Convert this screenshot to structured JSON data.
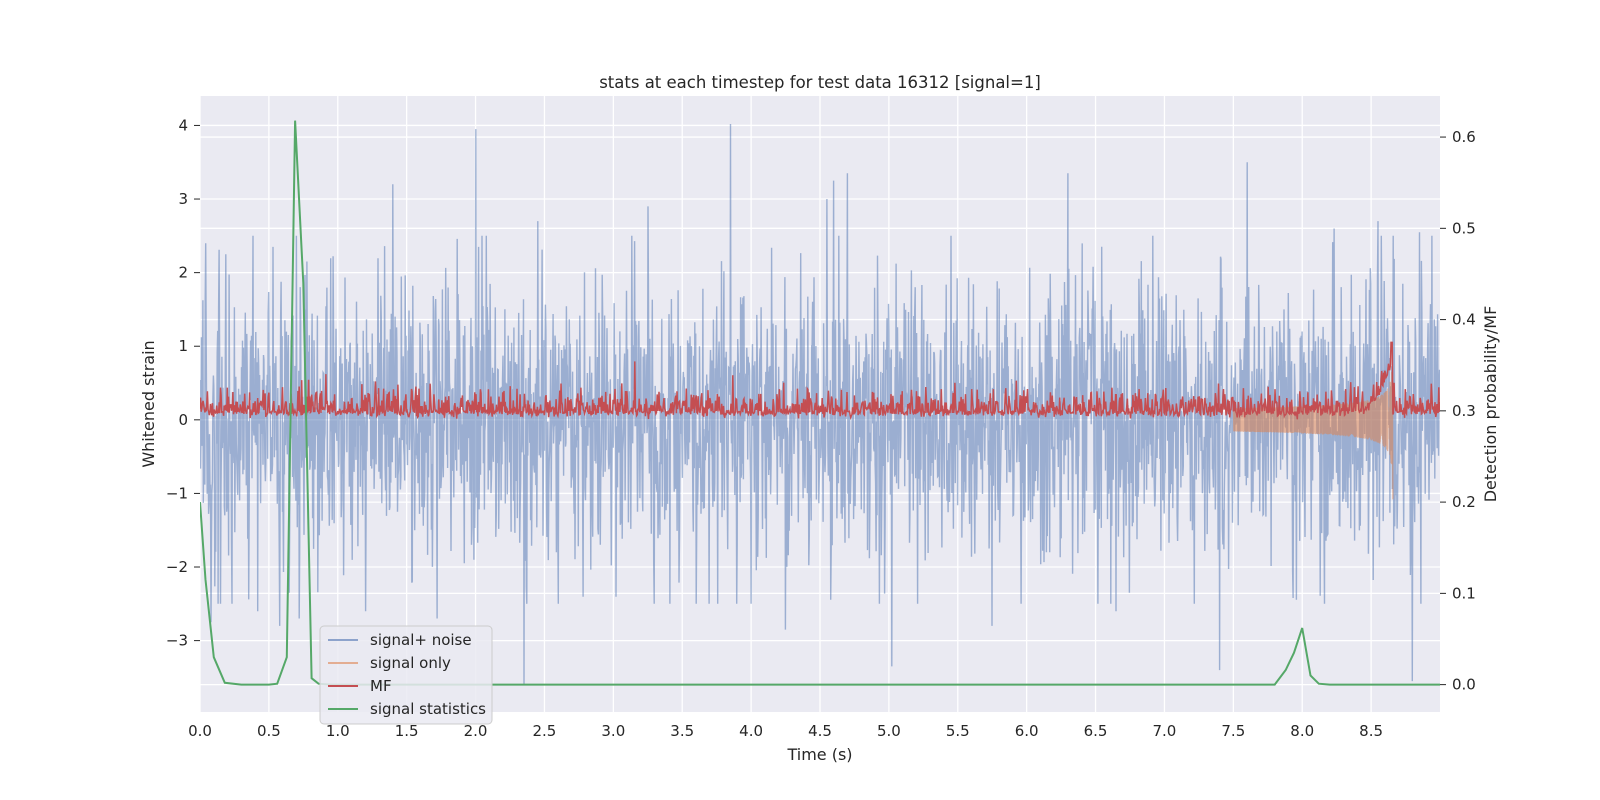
{
  "chart_data": {
    "type": "line",
    "title": "stats at each timestep for test data 16312 [signal=1]",
    "xlabel": "Time (s)",
    "ylabel": "Whitened strain",
    "y2label": "Detection probability/MF",
    "xlim": [
      0.0,
      9.0
    ],
    "ylim": [
      -3.97,
      4.4
    ],
    "y2lim": [
      -0.03,
      0.645
    ],
    "xticks": [
      0.0,
      0.5,
      1.0,
      1.5,
      2.0,
      2.5,
      3.0,
      3.5,
      4.0,
      4.5,
      5.0,
      5.5,
      6.0,
      6.5,
      7.0,
      7.5,
      8.0,
      8.5
    ],
    "xtick_labels": [
      "0.0",
      "0.5",
      "1.0",
      "1.5",
      "2.0",
      "2.5",
      "3.0",
      "3.5",
      "4.0",
      "4.5",
      "5.0",
      "5.5",
      "6.0",
      "6.5",
      "7.0",
      "7.5",
      "8.0",
      "8.5"
    ],
    "yticks": [
      4,
      3,
      2,
      1,
      0,
      -1,
      -2,
      -3
    ],
    "ytick_labels": [
      "4",
      "3",
      "2",
      "1",
      "0",
      "−1",
      "−2",
      "−3"
    ],
    "y2ticks": [
      0.6,
      0.5,
      0.4,
      0.3,
      0.2,
      0.1,
      0.0
    ],
    "y2tick_labels": [
      "0.6",
      "0.5",
      "0.4",
      "0.3",
      "0.2",
      "0.1",
      "0.0"
    ],
    "grid": true,
    "legend_position": "lower-left",
    "series": [
      {
        "name": "signal+ noise",
        "axis": "left",
        "color": "#4c72b0",
        "description_values": "dense whitened noise, envelope roughly between -2.5 and +2.5 with spikes",
        "peaks": [
          {
            "x": 0.04,
            "y": 2.4
          },
          {
            "x": 0.08,
            "y": -2.75
          },
          {
            "x": 0.15,
            "y": -2.5
          },
          {
            "x": 0.42,
            "y": -2.6
          },
          {
            "x": 0.53,
            "y": 2.35
          },
          {
            "x": 0.58,
            "y": -2.8
          },
          {
            "x": 0.7,
            "y": 2.5
          },
          {
            "x": 0.72,
            "y": -2.7
          },
          {
            "x": 1.2,
            "y": -2.6
          },
          {
            "x": 1.4,
            "y": 3.2
          },
          {
            "x": 1.72,
            "y": -2.7
          },
          {
            "x": 2.0,
            "y": 3.95
          },
          {
            "x": 2.35,
            "y": -3.6
          },
          {
            "x": 2.45,
            "y": 2.7
          },
          {
            "x": 2.6,
            "y": -2.5
          },
          {
            "x": 3.25,
            "y": 2.9
          },
          {
            "x": 3.6,
            "y": -2.5
          },
          {
            "x": 3.85,
            "y": 4.02
          },
          {
            "x": 4.0,
            "y": -2.5
          },
          {
            "x": 4.25,
            "y": -2.85
          },
          {
            "x": 4.6,
            "y": 3.25
          },
          {
            "x": 4.55,
            "y": 3.0
          },
          {
            "x": 4.7,
            "y": 3.35
          },
          {
            "x": 5.02,
            "y": -3.35
          },
          {
            "x": 5.45,
            "y": 2.5
          },
          {
            "x": 5.75,
            "y": -2.8
          },
          {
            "x": 6.3,
            "y": 3.35
          },
          {
            "x": 6.65,
            "y": -2.6
          },
          {
            "x": 7.4,
            "y": -3.4
          },
          {
            "x": 7.6,
            "y": 3.5
          },
          {
            "x": 8.23,
            "y": 2.6
          },
          {
            "x": 8.55,
            "y": 2.7
          },
          {
            "x": 8.8,
            "y": -3.55
          },
          {
            "x": 8.85,
            "y": 2.55
          }
        ]
      },
      {
        "name": "signal only",
        "axis": "left",
        "color": "#dd8452",
        "chirp_start": 7.5,
        "chirp_end": 8.66,
        "max_amplitude": 1.15
      },
      {
        "name": "MF",
        "axis": "right",
        "color": "#c44e52",
        "baseline": 0.3,
        "typical_range": [
          0.295,
          0.335
        ],
        "peak": {
          "x": 8.65,
          "y": 0.375
        }
      },
      {
        "name": "signal statistics",
        "axis": "right",
        "color": "#55a868",
        "x": [
          0.0,
          0.04,
          0.1,
          0.18,
          0.3,
          0.5,
          0.56,
          0.63,
          0.69,
          0.75,
          0.81,
          0.86,
          0.95,
          2.0,
          3.0,
          4.0,
          5.0,
          6.0,
          7.0,
          7.8,
          7.88,
          7.94,
          8.0,
          8.06,
          8.12,
          8.2,
          8.5,
          9.0
        ],
        "y": [
          0.2,
          0.115,
          0.03,
          0.002,
          0.0,
          0.0,
          0.001,
          0.03,
          0.618,
          0.44,
          0.007,
          0.001,
          0.0,
          0.0,
          0.0,
          0.0,
          0.0,
          0.0,
          0.0,
          0.0,
          0.016,
          0.035,
          0.062,
          0.01,
          0.001,
          0.0,
          0.0,
          0.0
        ]
      }
    ]
  }
}
